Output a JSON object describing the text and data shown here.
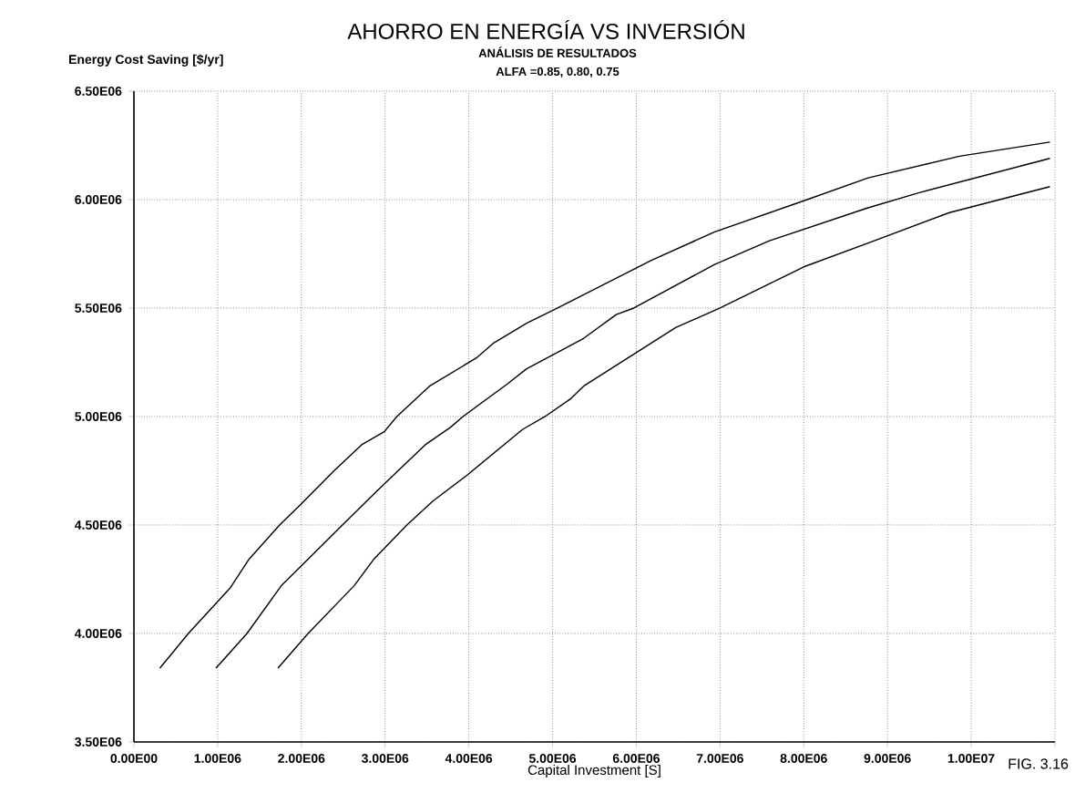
{
  "chart_data": {
    "type": "line",
    "title": "AHORRO EN ENERGÍA VS INVERSIÓN",
    "subtitle": "ANÁLISIS DE RESULTADOS",
    "xlabel": "Capital Investment [S]",
    "ylabel": "Energy Cost Saving [$/yr]",
    "annotations": [
      "ALFA =0.85, 0.80, 0.75",
      "FIG. 3.16"
    ],
    "series": [
      {
        "color": "#000000",
        "x": [
          310000,
          650000,
          1150000,
          1370000,
          1740000,
          1980000,
          2390000,
          2720000,
          2990000,
          3140000,
          3530000,
          4090000,
          4300000,
          4690000,
          5060000,
          6180000,
          6930000,
          8040000,
          8770000,
          9860000,
          10940000
        ],
        "values": [
          3840000,
          4000000,
          4210000,
          4340000,
          4500000,
          4590000,
          4750000,
          4870000,
          4930000,
          5000000,
          5140000,
          5270000,
          5340000,
          5430000,
          5500000,
          5720000,
          5850000,
          6000000,
          6100000,
          6200000,
          6265000
        ]
      },
      {
        "color": "#000000",
        "x": [
          980000,
          1350000,
          1760000,
          1970000,
          2490000,
          2910000,
          3480000,
          3780000,
          3930000,
          4460000,
          4690000,
          5370000,
          5760000,
          5970000,
          6930000,
          7590000,
          8750000,
          9360000,
          10940000
        ],
        "values": [
          3840000,
          4000000,
          4220000,
          4300000,
          4500000,
          4660000,
          4870000,
          4950000,
          5000000,
          5150000,
          5220000,
          5360000,
          5470000,
          5500000,
          5700000,
          5810000,
          5960000,
          6030000,
          6190000
        ]
      },
      {
        "color": "#000000",
        "x": [
          1720000,
          2080000,
          2630000,
          2860000,
          3260000,
          3570000,
          3980000,
          4640000,
          4910000,
          5210000,
          5370000,
          6470000,
          7000000,
          8000000,
          8770000,
          9740000,
          10940000
        ],
        "values": [
          3840000,
          4000000,
          4220000,
          4340000,
          4500000,
          4610000,
          4730000,
          4940000,
          5000000,
          5080000,
          5140000,
          5410000,
          5500000,
          5690000,
          5800000,
          5940000,
          6060000
        ]
      }
    ],
    "xlim": [
      0,
      11000000
    ],
    "ylim": [
      3500000,
      6500000
    ],
    "xticks": [
      {
        "value": 0,
        "label": "0.00E00"
      },
      {
        "value": 1000000,
        "label": "1.00E06"
      },
      {
        "value": 2000000,
        "label": "2.00E06"
      },
      {
        "value": 3000000,
        "label": "3.00E06"
      },
      {
        "value": 4000000,
        "label": "4.00E06"
      },
      {
        "value": 5000000,
        "label": "5.00E06"
      },
      {
        "value": 6000000,
        "label": "6.00E06"
      },
      {
        "value": 7000000,
        "label": "7.00E06"
      },
      {
        "value": 8000000,
        "label": "8.00E06"
      },
      {
        "value": 9000000,
        "label": "9.00E06"
      },
      {
        "value": 10000000,
        "label": "1.00E07"
      },
      {
        "value": 11000000,
        "label": null
      }
    ],
    "yticks": [
      {
        "value": 3500000,
        "label": "3.50E06"
      },
      {
        "value": 4000000,
        "label": "4.00E06"
      },
      {
        "value": 4500000,
        "label": "4.50E06"
      },
      {
        "value": 5000000,
        "label": "5.00E06"
      },
      {
        "value": 5500000,
        "label": "5.50E06"
      },
      {
        "value": 6000000,
        "label": "6.00E06"
      },
      {
        "value": 6500000,
        "label": "6.50E06"
      }
    ],
    "grid": true
  }
}
